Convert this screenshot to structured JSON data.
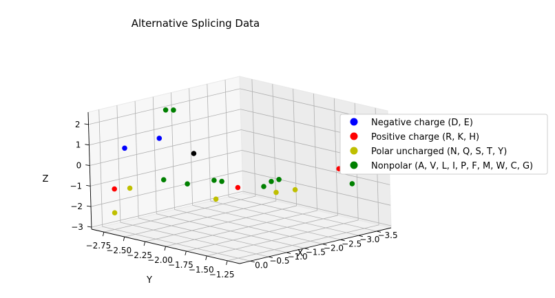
{
  "chart_data": {
    "type": "scatter",
    "title": "Alternative Splicing Data",
    "xlabel": "X",
    "ylabel": "Y",
    "zlabel": "Z",
    "x_ticks": [
      "0.0",
      "−0.5",
      "−1.0",
      "−1.5",
      "−2.0",
      "−2.5",
      "−3.0",
      "−3.5"
    ],
    "y_ticks": [
      "−2.75",
      "−2.50",
      "−2.25",
      "−2.00",
      "−1.75",
      "−1.50",
      "−1.25"
    ],
    "z_ticks": [
      "−3",
      "−2",
      "−1",
      "0",
      "1",
      "2"
    ],
    "xlim": [
      0.3,
      -3.9
    ],
    "ylim": [
      -2.9,
      -1.1
    ],
    "zlim": [
      -3.1,
      2.6
    ],
    "grid": true,
    "legend_position": "right",
    "series": [
      {
        "name": "Negative charge (D, E)",
        "color": "#0000ff",
        "points": [
          {
            "x": 0.0,
            "y": -2.6,
            "z": 1.0
          },
          {
            "x": -0.4,
            "y": -2.35,
            "z": 1.55
          }
        ]
      },
      {
        "name": "Positive charge (R, K, H)",
        "color": "#ff0000",
        "points": [
          {
            "x": 0.2,
            "y": -2.65,
            "z": -0.95
          },
          {
            "x": -1.4,
            "y": -1.85,
            "z": -0.8
          },
          {
            "x": -3.3,
            "y": -1.45,
            "z": -0.3
          }
        ]
      },
      {
        "name": "Polar uncharged (N, Q, S, T, Y)",
        "color": "#bfbf00",
        "points": [
          {
            "x": 0.1,
            "y": -2.7,
            "z": -2.2
          },
          {
            "x": 0.0,
            "y": -2.55,
            "z": -0.9
          },
          {
            "x": -0.9,
            "y": -1.9,
            "z": -1.2
          },
          {
            "x": -2.0,
            "y": -1.65,
            "z": -1.1
          },
          {
            "x": -2.3,
            "y": -1.55,
            "z": -1.0
          }
        ]
      },
      {
        "name": "Nonpolar (A, V, L, I, P, F, M, W, C, G)",
        "color": "#008000",
        "points": [
          {
            "x": -1.5,
            "y": -2.75,
            "z": 2.1
          },
          {
            "x": -1.6,
            "y": -2.7,
            "z": 2.1
          },
          {
            "x": -0.6,
            "y": -2.4,
            "z": -0.6
          },
          {
            "x": -0.8,
            "y": -2.2,
            "z": -0.7
          },
          {
            "x": -1.2,
            "y": -2.05,
            "z": -0.55
          },
          {
            "x": -1.3,
            "y": -2.0,
            "z": -0.6
          },
          {
            "x": -2.1,
            "y": -1.75,
            "z": -0.7
          },
          {
            "x": -2.2,
            "y": -1.7,
            "z": -0.6
          },
          {
            "x": -2.0,
            "y": -1.8,
            "z": -0.95
          },
          {
            "x": -3.2,
            "y": -1.25,
            "z": -0.8
          }
        ]
      },
      {
        "name": "",
        "color": "#000000",
        "points": [
          {
            "x": -1.0,
            "y": -2.2,
            "z": 0.7
          }
        ]
      }
    ]
  }
}
